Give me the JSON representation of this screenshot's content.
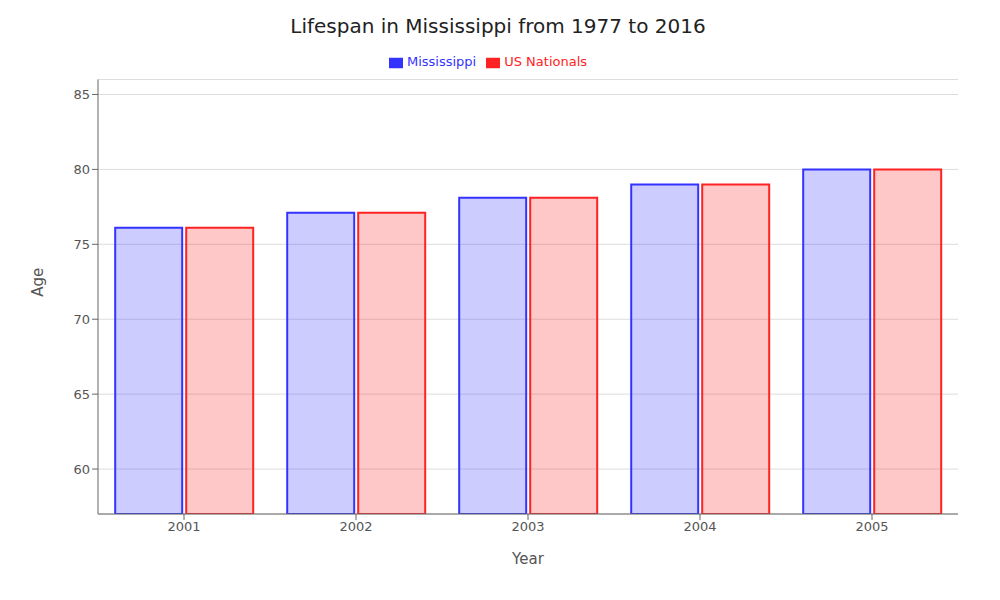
{
  "chart_data": {
    "type": "bar",
    "title": "Lifespan in Mississippi from 1977 to 2016",
    "x_label": "Year",
    "y_label": "Age",
    "categories": [
      "2001",
      "2002",
      "2003",
      "2004",
      "2005"
    ],
    "series": [
      {
        "name": "Mississippi",
        "color": "#3333ff",
        "values": [
          76.1,
          77.1,
          78.1,
          79.0,
          80.0
        ]
      },
      {
        "name": "US Nationals",
        "color": "#ff2222",
        "values": [
          76.1,
          77.1,
          78.1,
          79.0,
          80.0
        ]
      }
    ],
    "ylim": [
      57,
      86
    ],
    "yticks": [
      60,
      65,
      70,
      75,
      80,
      85
    ],
    "grid": true,
    "legend": "top"
  }
}
